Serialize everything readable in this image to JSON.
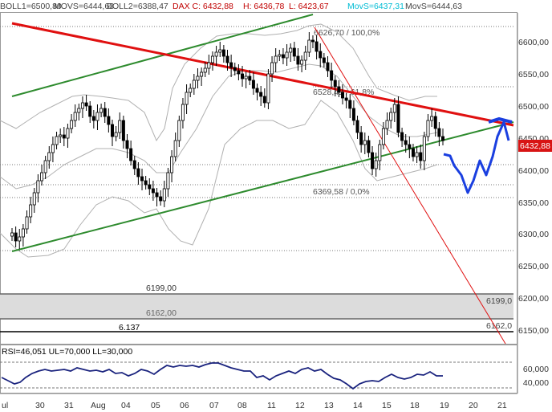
{
  "header": {
    "boll1": "BOLL1=6500,80",
    "movs": "MOVS=6444,63",
    "boll2": "BOLL2=6388,47",
    "dax": "DAX C: 6432,88",
    "high": "H: 6436,78",
    "low": "L: 6423,67",
    "movs_cyan": "MovS=6437,31",
    "movs2": "MovS=6444,63"
  },
  "colors": {
    "candle_up": "#ffffff",
    "candle_down": "#000000",
    "bollinger": "#b0b0b0",
    "channel": "#2e8b2e",
    "resistance": "#e01010",
    "projection": "#1a3fe0",
    "rsi": "#1a237e",
    "price_tag_bg": "#d81414",
    "header_red": "#c00000",
    "header_cyan": "#00bcd4"
  },
  "price_tag": "6432,88",
  "rsi_label": "RSI=46,051 UL=70,000 LL=30,000",
  "chart_data": {
    "type": "candlestick",
    "y_axis": {
      "range": [
        6120,
        6640
      ],
      "ticks": [
        "6600,00",
        "6550,00",
        "6500,00",
        "6450,00",
        "6400,00",
        "6350,00",
        "6300,00",
        "6250,00",
        "6200,00",
        "6150,00"
      ]
    },
    "x_axis": {
      "ticks": [
        "ul",
        "30",
        "31",
        "Aug",
        "04",
        "05",
        "06",
        "07",
        "08",
        "11",
        "12",
        "13",
        "14",
        "15",
        "18",
        "19",
        "20",
        "21"
      ]
    },
    "levels": [
      {
        "label": "6626,70 / 100,0%",
        "value": 6626.7
      },
      {
        "label": "6528,41 / 61,8%",
        "value": 6528.4
      },
      {
        "label": "6369,58 / 0,0%",
        "value": 6369.6
      }
    ],
    "gap_zones": [
      {
        "label": "6199,00",
        "value": 6199,
        "right_label": "6199,0"
      },
      {
        "label": "6162,00",
        "value": 6162,
        "right_label": ""
      },
      {
        "label": "6.137",
        "value": 6137,
        "right_label": "6162,0"
      }
    ],
    "resistance_line": [
      [
        6510,
        6632
      ],
      [
        6470,
        6640
      ]
    ],
    "rsi_panel": {
      "range": [
        20,
        75
      ],
      "ticks": [
        "60,000",
        "40,000"
      ],
      "upper": 70,
      "lower": 30
    }
  }
}
